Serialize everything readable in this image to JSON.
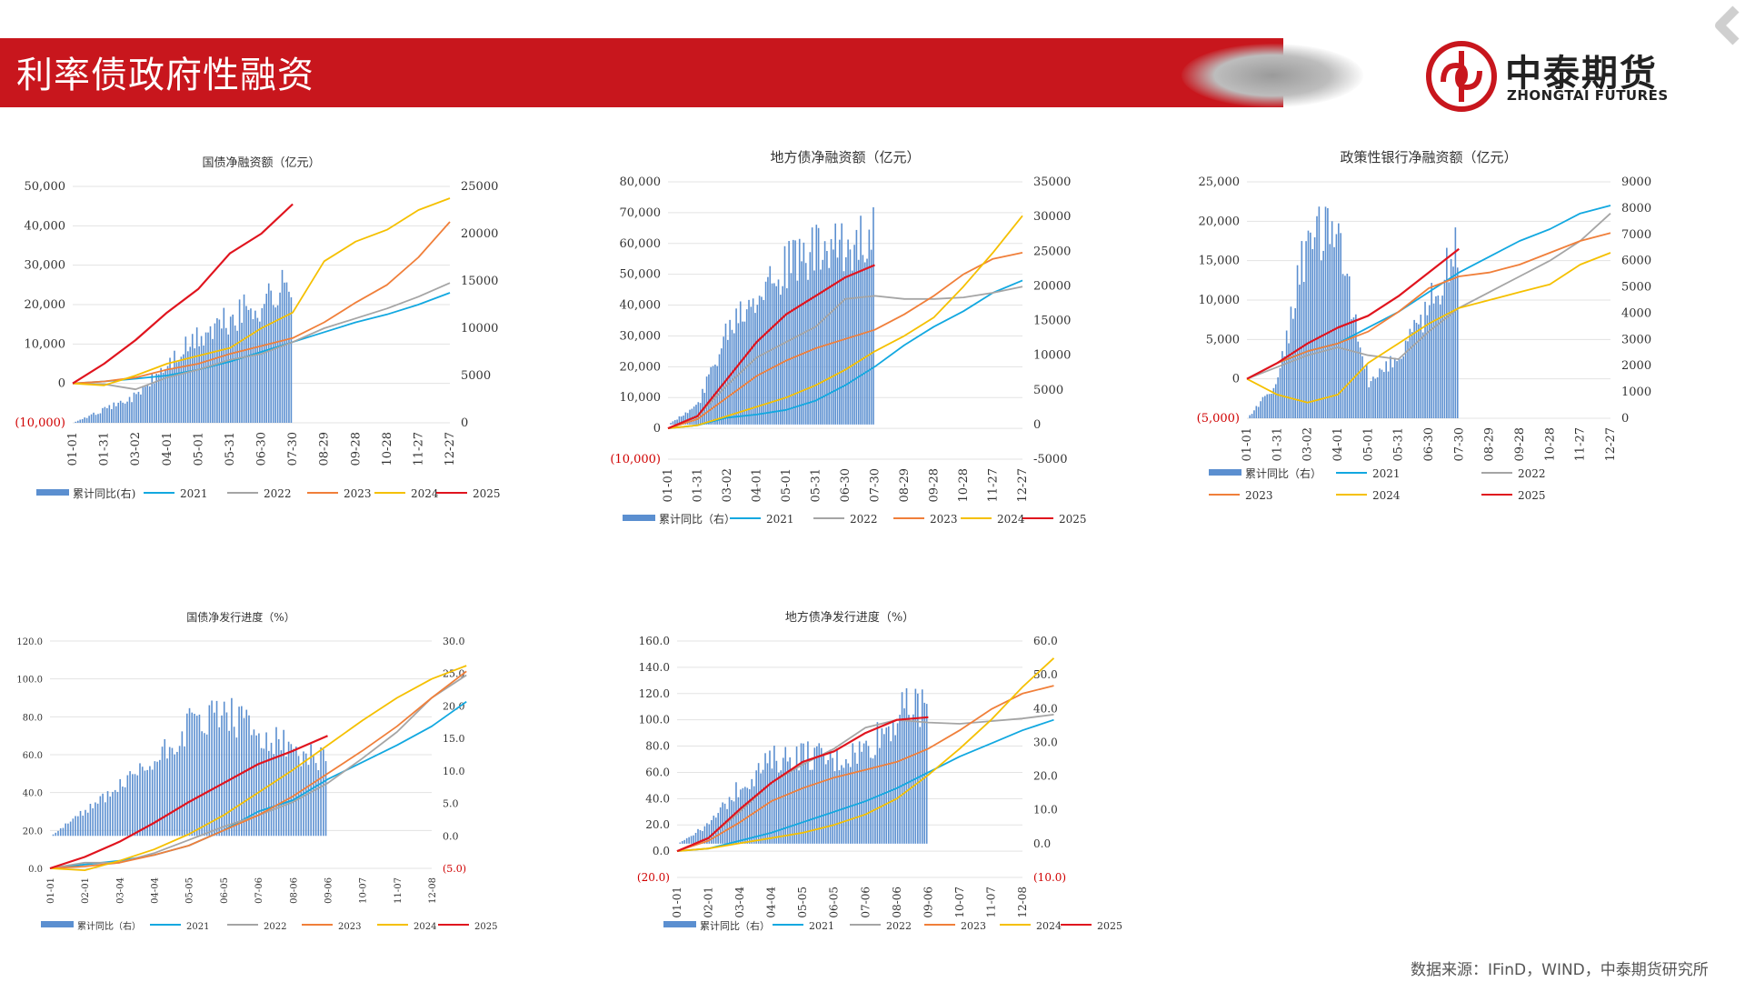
{
  "header": {
    "title": "利率债政府性融资"
  },
  "logo": {
    "name_cn": "中泰期货",
    "name_en": "ZHONGTAI FUTURES"
  },
  "source": "数据来源：IFinD，WIND，中泰期货研究所",
  "colors": {
    "brand_red": "#c8161d",
    "bar": "#5b8fd0",
    "s2021": "#12a8e0",
    "s2022": "#a5a5a5",
    "s2023": "#f07f3a",
    "s2024": "#f5c000",
    "s2025": "#e0141e"
  },
  "chart_data": [
    {
      "id": "c1",
      "type": "line+bar",
      "title": "国债净融资额（亿元）",
      "x_ticks": [
        "01-01",
        "01-31",
        "03-02",
        "04-01",
        "05-01",
        "05-31",
        "06-30",
        "07-30",
        "08-29",
        "09-28",
        "10-28",
        "11-27",
        "12-27"
      ],
      "y_left": {
        "min": -10000,
        "max": 50000,
        "ticks": [
          "50,000",
          "40,000",
          "30,000",
          "20,000",
          "10,000",
          "0",
          "(10,000)"
        ]
      },
      "y_right": {
        "min": 0,
        "max": 25000,
        "ticks": [
          "25000",
          "20000",
          "15000",
          "10000",
          "5000",
          "0"
        ]
      },
      "legend": [
        "累计同比(右)",
        "2021",
        "2022",
        "2023",
        "2024",
        "2025"
      ],
      "series": [
        {
          "name": "2021",
          "values": [
            0,
            500,
            1200,
            2000,
            3500,
            5500,
            8000,
            10500,
            13000,
            15500,
            17500,
            20000,
            23000
          ]
        },
        {
          "name": "2022",
          "values": [
            0,
            -200,
            -1500,
            1500,
            3500,
            6000,
            7500,
            10500,
            14000,
            16500,
            19000,
            22000,
            25500
          ]
        },
        {
          "name": "2023",
          "values": [
            0,
            500,
            1500,
            3500,
            5000,
            7500,
            9500,
            11500,
            15500,
            20500,
            25000,
            32000,
            41000
          ]
        },
        {
          "name": "2024",
          "values": [
            0,
            -500,
            2000,
            5000,
            7000,
            9000,
            14000,
            18000,
            31000,
            36000,
            39000,
            44000,
            47000
          ]
        },
        {
          "name": "2025",
          "values": [
            0,
            5000,
            11000,
            18000,
            24000,
            33000,
            38000,
            45500
          ]
        },
        {
          "name": "累计同比(右)",
          "values": [
            0,
            1500,
            3000,
            6500,
            9500,
            11500,
            13500,
            15500
          ]
        }
      ]
    },
    {
      "id": "c2",
      "type": "line+bar",
      "title": "地方债净融资额（亿元）",
      "x_ticks": [
        "01-01",
        "01-31",
        "03-02",
        "04-01",
        "05-01",
        "05-31",
        "06-30",
        "07-30",
        "08-29",
        "09-28",
        "10-28",
        "11-27",
        "12-27"
      ],
      "y_left": {
        "min": -10000,
        "max": 80000,
        "ticks": [
          "80,000",
          "70,000",
          "60,000",
          "50,000",
          "40,000",
          "30,000",
          "20,000",
          "10,000",
          "0",
          "(10,000)"
        ]
      },
      "y_right": {
        "min": -5000,
        "max": 35000,
        "ticks": [
          "35000",
          "30000",
          "25000",
          "20000",
          "15000",
          "10000",
          "5000",
          "0",
          "-5000"
        ]
      },
      "legend": [
        "累计同比（右）",
        "2021",
        "2022",
        "2023",
        "2024",
        "2025"
      ],
      "series": [
        {
          "name": "2021",
          "values": [
            0,
            1000,
            3500,
            4500,
            6000,
            9000,
            14000,
            20000,
            27000,
            33000,
            38000,
            44000,
            48000
          ]
        },
        {
          "name": "2022",
          "values": [
            0,
            4000,
            14000,
            23000,
            28000,
            33000,
            42000,
            43000,
            42000,
            42000,
            42500,
            44000,
            46000
          ]
        },
        {
          "name": "2023",
          "values": [
            0,
            3000,
            10000,
            17000,
            22000,
            26000,
            29000,
            32000,
            37000,
            43000,
            50000,
            55000,
            57000
          ]
        },
        {
          "name": "2024",
          "values": [
            0,
            1000,
            4000,
            7000,
            10000,
            14000,
            19000,
            25000,
            30000,
            36000,
            46000,
            57000,
            69000
          ]
        },
        {
          "name": "2025",
          "values": [
            0,
            4000,
            16000,
            28000,
            37000,
            43000,
            49000,
            53000
          ]
        },
        {
          "name": "累计同比（右）",
          "values": [
            0,
            3000,
            15000,
            21000,
            24000,
            26000,
            26000,
            31000
          ]
        }
      ]
    },
    {
      "id": "c3",
      "type": "line+bar",
      "title": "政策性银行净融资额（亿元）",
      "x_ticks": [
        "01-01",
        "01-31",
        "03-02",
        "04-01",
        "05-01",
        "05-31",
        "06-30",
        "07-30",
        "08-29",
        "09-28",
        "10-28",
        "11-27",
        "12-27"
      ],
      "y_left": {
        "min": -5000,
        "max": 25000,
        "ticks": [
          "25,000",
          "20,000",
          "15,000",
          "10,000",
          "5,000",
          "0",
          "(5,000)"
        ]
      },
      "y_right": {
        "min": 0,
        "max": 9000,
        "ticks": [
          "9000",
          "8000",
          "7000",
          "6000",
          "5000",
          "4000",
          "3000",
          "2000",
          "1000",
          "0"
        ]
      },
      "legend": [
        "累计同比（右）",
        "2021",
        "2022",
        "2023",
        "2024",
        "2025"
      ],
      "series": [
        {
          "name": "2021",
          "values": [
            0,
            2000,
            3500,
            4500,
            6500,
            8500,
            11000,
            13500,
            15500,
            17500,
            19000,
            21000,
            22000
          ]
        },
        {
          "name": "2022",
          "values": [
            0,
            1500,
            3000,
            4000,
            3000,
            2500,
            6000,
            9000,
            11000,
            13000,
            15000,
            17500,
            21000
          ]
        },
        {
          "name": "2023",
          "values": [
            0,
            2000,
            3500,
            4500,
            6000,
            8500,
            11500,
            13000,
            13500,
            14500,
            16000,
            17500,
            18500
          ]
        },
        {
          "name": "2024",
          "values": [
            0,
            -2000,
            -3000,
            -2000,
            2000,
            4500,
            7000,
            9000,
            10000,
            11000,
            12000,
            14500,
            16000
          ]
        },
        {
          "name": "2025",
          "values": [
            0,
            2000,
            4500,
            6500,
            8000,
            10500,
            13500,
            16500
          ]
        },
        {
          "name": "累计同比（右）",
          "values": [
            0,
            1500,
            7500,
            7000,
            1500,
            2500,
            4500,
            7000
          ]
        }
      ]
    },
    {
      "id": "c4",
      "type": "line+bar",
      "title": "国债净发行进度（%）",
      "x_ticks": [
        "01-01",
        "02-01",
        "03-04",
        "04-04",
        "05-05",
        "06-05",
        "07-06",
        "08-06",
        "09-06",
        "10-07",
        "11-07",
        "12-08"
      ],
      "y_left": {
        "min": 0,
        "max": 120,
        "ticks": [
          "120.0",
          "100.0",
          "80.0",
          "60.0",
          "40.0",
          "20.0",
          "0.0"
        ]
      },
      "y_right": {
        "min": -5,
        "max": 30,
        "ticks": [
          "30.0",
          "25.0",
          "20.0",
          "15.0",
          "10.0",
          "5.0",
          "0.0",
          "(5.0)"
        ]
      },
      "legend": [
        "累计同比（右）",
        "2021",
        "2022",
        "2023",
        "2024",
        "2025"
      ],
      "series": [
        {
          "name": "2021",
          "values": [
            0,
            2,
            4,
            7,
            12,
            20,
            30,
            36,
            47,
            56,
            65,
            75,
            88
          ]
        },
        {
          "name": "2022",
          "values": [
            0,
            3,
            3,
            8,
            15,
            22,
            28,
            35,
            45,
            58,
            72,
            90,
            102
          ]
        },
        {
          "name": "2023",
          "values": [
            0,
            1,
            3,
            7,
            12,
            20,
            28,
            38,
            50,
            62,
            75,
            90,
            104
          ]
        },
        {
          "name": "2024",
          "values": [
            0,
            -1,
            4,
            10,
            18,
            28,
            40,
            52,
            65,
            78,
            90,
            100,
            107
          ]
        },
        {
          "name": "2025",
          "values": [
            0,
            6,
            14,
            24,
            35,
            45,
            55,
            62,
            70
          ]
        },
        {
          "name": "累计同比（右）",
          "values": [
            0,
            4,
            8,
            12,
            18,
            20,
            16,
            14,
            12
          ]
        }
      ]
    },
    {
      "id": "c5",
      "type": "line+bar",
      "title": "地方债净发行进度（%）",
      "x_ticks": [
        "01-01",
        "02-01",
        "03-04",
        "04-04",
        "05-05",
        "06-05",
        "07-06",
        "08-06",
        "09-06",
        "10-07",
        "11-07",
        "12-08"
      ],
      "y_left": {
        "min": -20,
        "max": 160,
        "ticks": [
          "160.0",
          "140.0",
          "120.0",
          "100.0",
          "80.0",
          "60.0",
          "40.0",
          "20.0",
          "0.0",
          "(20.0)"
        ]
      },
      "y_right": {
        "min": -10,
        "max": 60,
        "ticks": [
          "60.0",
          "50.0",
          "40.0",
          "30.0",
          "20.0",
          "10.0",
          "0.0",
          "(10.0)"
        ]
      },
      "legend": [
        "累计同比（右）",
        "2021",
        "2022",
        "2023",
        "2024",
        "2025"
      ],
      "series": [
        {
          "name": "2021",
          "values": [
            0,
            2,
            8,
            14,
            22,
            30,
            38,
            48,
            60,
            72,
            82,
            92,
            100
          ]
        },
        {
          "name": "2022",
          "values": [
            0,
            10,
            30,
            52,
            66,
            78,
            94,
            100,
            98,
            97,
            99,
            101,
            104
          ]
        },
        {
          "name": "2023",
          "values": [
            0,
            8,
            22,
            38,
            48,
            56,
            62,
            68,
            78,
            92,
            108,
            120,
            126
          ]
        },
        {
          "name": "2024",
          "values": [
            0,
            2,
            6,
            10,
            14,
            20,
            28,
            40,
            58,
            78,
            100,
            125,
            147
          ]
        },
        {
          "name": "2025",
          "values": [
            0,
            10,
            32,
            52,
            68,
            76,
            90,
            100,
            102
          ]
        },
        {
          "name": "累计同比（右）",
          "values": [
            0,
            6,
            18,
            26,
            28,
            26,
            30,
            40,
            44
          ]
        }
      ]
    }
  ]
}
